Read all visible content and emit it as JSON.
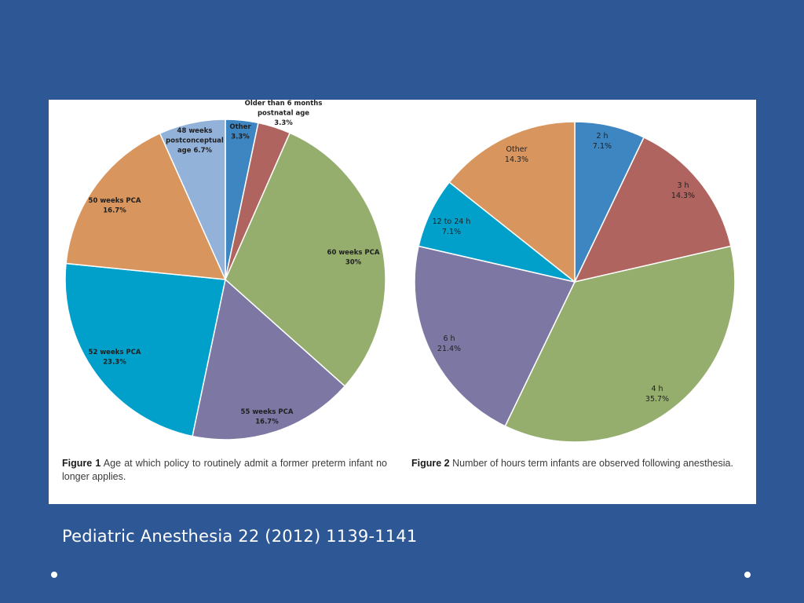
{
  "chart_data": [
    {
      "type": "pie",
      "figure_label": "Figure 1",
      "caption": "Age at which policy to routinely admit a former preterm infant no longer applies.",
      "slices": [
        {
          "label": [
            "Other",
            "3.3%"
          ],
          "value": 3.3,
          "color": "#3e86c2"
        },
        {
          "label": [
            "Older than 6 months",
            "postnatal age",
            "3.3%"
          ],
          "value": 3.3,
          "color": "#b0645f"
        },
        {
          "label": [
            "60 weeks PCA",
            "30%"
          ],
          "value": 30,
          "color": "#95ae6d"
        },
        {
          "label": [
            "55 weeks PCA",
            "16.7%"
          ],
          "value": 16.7,
          "color": "#7c77a3"
        },
        {
          "label": [
            "52 weeks PCA",
            "23.3%"
          ],
          "value": 23.3,
          "color": "#00a0cb"
        },
        {
          "label": [
            "50 weeks PCA",
            "16.7%"
          ],
          "value": 16.7,
          "color": "#d8955e"
        },
        {
          "label": [
            "48 weeks",
            "postconceptual",
            "age 6.7%"
          ],
          "value": 6.7,
          "color": "#93b2da"
        }
      ]
    },
    {
      "type": "pie",
      "figure_label": "Figure 2",
      "caption": "Number of hours term infants are observed following anesthesia.",
      "slices": [
        {
          "label": [
            "2 h",
            "7.1%"
          ],
          "value": 7.1,
          "color": "#3e86c2"
        },
        {
          "label": [
            "3 h",
            "14.3%"
          ],
          "value": 14.3,
          "color": "#b0645f"
        },
        {
          "label": [
            "4 h",
            "35.7%"
          ],
          "value": 35.7,
          "color": "#95ae6d"
        },
        {
          "label": [
            "6 h",
            "21.4%"
          ],
          "value": 21.4,
          "color": "#7c77a3"
        },
        {
          "label": [
            "12 to 24 h",
            "7.1%"
          ],
          "value": 7.1,
          "color": "#00a0cb"
        },
        {
          "label": [
            "Other",
            "14.3%"
          ],
          "value": 14.3,
          "color": "#d8955e"
        }
      ]
    }
  ],
  "citation": "Pediatric Anesthesia 22 (2012) 1139-1141"
}
